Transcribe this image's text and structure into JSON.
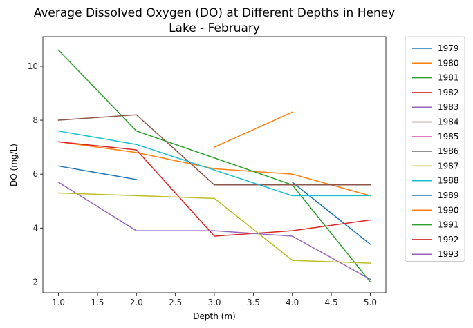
{
  "chart_data": {
    "type": "line",
    "title": "Average Dissolved Oxygen (DO) at Different Depths in Heney Lake - February",
    "title_lines": [
      "Average Dissolved Oxygen (DO) at Different Depths in Heney",
      "Lake - February"
    ],
    "xlabel": "Depth (m)",
    "ylabel": "DO (mg/L)",
    "xlim": [
      0.8,
      5.2
    ],
    "ylim": [
      1.6,
      11.1
    ],
    "xticks": [
      1.0,
      1.5,
      2.0,
      2.5,
      3.0,
      3.5,
      4.0,
      4.5,
      5.0
    ],
    "xtick_labels": [
      "1.0",
      "1.5",
      "2.0",
      "2.5",
      "3.0",
      "3.5",
      "4.0",
      "4.5",
      "5.0"
    ],
    "yticks": [
      2,
      4,
      6,
      8,
      10
    ],
    "ytick_labels": [
      "2",
      "4",
      "6",
      "8",
      "10"
    ],
    "grid": false,
    "legend_position": "outside-right",
    "series": [
      {
        "name": "1979",
        "color": "#1f77b4",
        "x": [
          4,
          5
        ],
        "y": [
          5.7,
          3.4
        ]
      },
      {
        "name": "1980",
        "color": "#ff7f0e",
        "x": [
          1,
          2,
          3,
          4,
          5
        ],
        "y": [
          7.2,
          6.8,
          6.2,
          6.0,
          5.2
        ]
      },
      {
        "name": "1981",
        "color": "#2ca02c",
        "x": [
          1,
          2,
          4,
          5
        ],
        "y": [
          10.6,
          7.6,
          5.6,
          2.0
        ]
      },
      {
        "name": "1982",
        "color": "#d62728",
        "x": [
          1,
          2,
          3,
          4,
          5
        ],
        "y": [
          7.2,
          6.9,
          3.7,
          3.9,
          4.3
        ]
      },
      {
        "name": "1983",
        "color": "#9467bd",
        "x": [
          1,
          2,
          3,
          4,
          5
        ],
        "y": [
          5.7,
          3.9,
          3.9,
          3.7,
          2.1
        ]
      },
      {
        "name": "1984",
        "color": "#8c564b",
        "x": [
          1,
          2,
          3,
          4,
          5
        ],
        "y": [
          8.0,
          8.2,
          5.6,
          5.6,
          5.6
        ]
      },
      {
        "name": "1985",
        "color": "#e377c2",
        "x": [],
        "y": []
      },
      {
        "name": "1986",
        "color": "#7f7f7f",
        "x": [],
        "y": []
      },
      {
        "name": "1987",
        "color": "#bcbd22",
        "x": [
          1,
          2,
          3,
          4,
          5
        ],
        "y": [
          5.3,
          5.2,
          5.1,
          2.8,
          2.7
        ]
      },
      {
        "name": "1988",
        "color": "#17becf",
        "x": [
          1,
          2,
          4,
          5
        ],
        "y": [
          7.6,
          7.1,
          5.2,
          5.2
        ]
      },
      {
        "name": "1989",
        "color": "#1f77b4",
        "x": [
          1,
          2
        ],
        "y": [
          6.3,
          5.8
        ]
      },
      {
        "name": "1990",
        "color": "#ff7f0e",
        "x": [
          3,
          4
        ],
        "y": [
          7.0,
          8.3
        ]
      },
      {
        "name": "1991",
        "color": "#2ca02c",
        "x": [],
        "y": []
      },
      {
        "name": "1992",
        "color": "#d62728",
        "x": [],
        "y": []
      },
      {
        "name": "1993",
        "color": "#9467bd",
        "x": [],
        "y": []
      }
    ]
  }
}
